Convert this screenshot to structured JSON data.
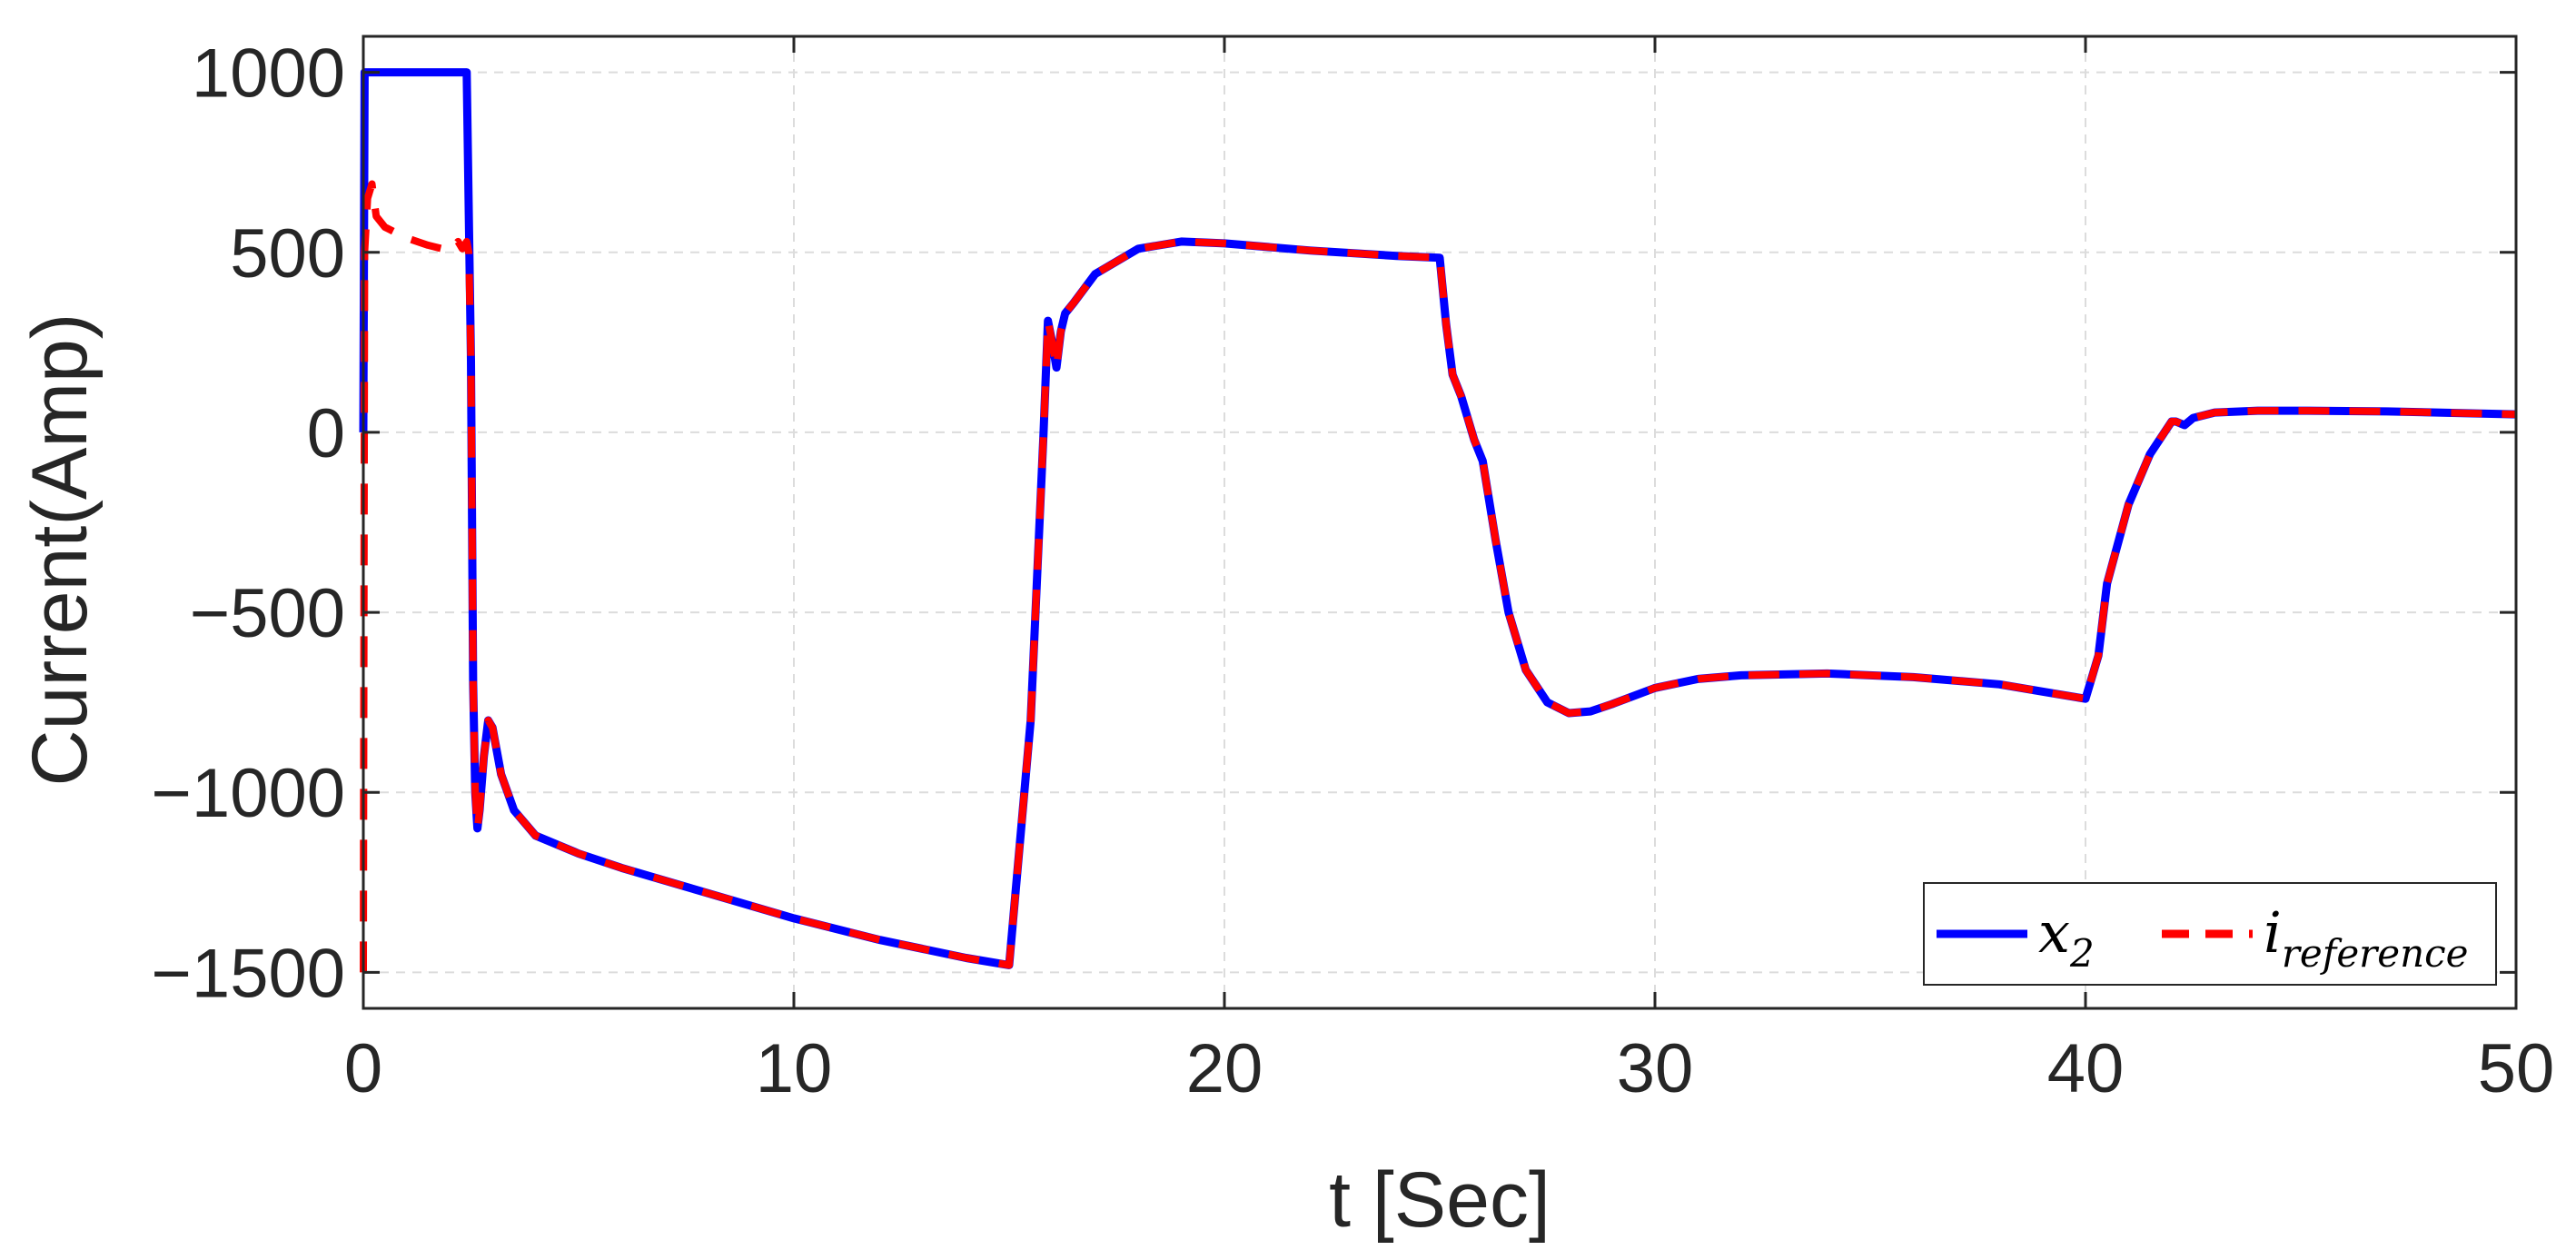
{
  "chart_data": {
    "type": "line",
    "xlabel": "t [Sec]",
    "ylabel": "Current(Amp)",
    "xlim": [
      0,
      50
    ],
    "ylim": [
      -1600,
      1100
    ],
    "x_ticks": [
      0,
      10,
      20,
      30,
      40,
      50
    ],
    "x_tick_labels": [
      "0",
      "10",
      "20",
      "30",
      "40",
      "50"
    ],
    "y_ticks": [
      1000,
      500,
      0,
      -500,
      -1000,
      -1500
    ],
    "y_tick_labels": [
      "1000",
      "500",
      "0",
      "−500",
      "−1000",
      "−1500"
    ],
    "grid": true,
    "legend_position": "bottom-right",
    "series": [
      {
        "name_base": "x",
        "name_sub": "2",
        "color": "#0000ff",
        "style": "solid",
        "x": [
          0,
          0.03,
          0.3,
          1.0,
          2.0,
          2.4,
          2.5,
          2.55,
          2.6,
          2.65,
          2.7,
          2.8,
          2.9,
          3.0,
          3.2,
          3.5,
          4,
          5,
          6,
          8,
          10,
          12,
          14,
          15,
          15.5,
          15.8,
          15.9,
          16.0,
          16.1,
          16.2,
          16.3,
          16.5,
          17,
          18,
          19,
          20,
          22,
          24,
          25,
          25.15,
          25.3,
          25.5,
          25.8,
          26,
          26.3,
          26.6,
          27,
          27.5,
          28,
          28.5,
          29,
          30,
          31,
          32,
          34,
          36,
          38,
          39,
          40,
          40.3,
          40.5,
          41,
          41.5,
          42,
          42.1,
          42.3,
          42.5,
          43,
          44,
          45,
          47,
          50
        ],
        "y": [
          0,
          1000,
          1000,
          1000,
          1000,
          1000,
          200,
          -700,
          -1000,
          -1100,
          -1050,
          -900,
          -800,
          -820,
          -950,
          -1050,
          -1120,
          -1170,
          -1210,
          -1280,
          -1350,
          -1410,
          -1460,
          -1480,
          -800,
          0,
          310,
          250,
          180,
          280,
          330,
          360,
          440,
          510,
          530,
          525,
          505,
          490,
          485,
          300,
          160,
          100,
          -20,
          -80,
          -300,
          -500,
          -660,
          -750,
          -780,
          -775,
          -755,
          -710,
          -685,
          -675,
          -670,
          -680,
          -700,
          -720,
          -740,
          -620,
          -420,
          -200,
          -60,
          30,
          30,
          20,
          40,
          55,
          60,
          60,
          58,
          50
        ]
      },
      {
        "name_base": "i",
        "name_sub": "reference",
        "color": "#ff0000",
        "style": "dashed",
        "x": [
          0,
          0.03,
          0.1,
          0.2,
          0.3,
          0.5,
          1.0,
          1.5,
          2.0,
          2.2,
          2.3,
          2.4,
          2.45,
          2.5,
          2.55,
          2.6,
          2.65,
          2.7,
          2.8,
          2.9,
          3.0,
          3.2,
          3.5,
          4,
          5,
          6,
          8,
          10,
          12,
          14,
          15,
          15.5,
          15.8,
          15.9,
          16.0,
          16.1,
          16.2,
          16.3,
          16.5,
          17,
          18,
          19,
          20,
          22,
          24,
          25,
          25.15,
          25.3,
          25.5,
          25.8,
          26,
          26.3,
          26.6,
          27,
          27.5,
          28,
          28.5,
          29,
          30,
          31,
          32,
          34,
          36,
          38,
          39,
          40,
          40.3,
          40.5,
          41,
          41.5,
          42,
          42.1,
          42.3,
          42.5,
          43,
          44,
          45,
          47,
          50
        ],
        "y": [
          -1500,
          500,
          650,
          690,
          600,
          570,
          540,
          520,
          505,
          530,
          510,
          530,
          500,
          200,
          -700,
          -1000,
          -1100,
          -1050,
          -900,
          -800,
          -820,
          -950,
          -1050,
          -1120,
          -1170,
          -1210,
          -1280,
          -1350,
          -1410,
          -1460,
          -1480,
          -800,
          0,
          310,
          250,
          180,
          280,
          330,
          360,
          440,
          510,
          530,
          525,
          505,
          490,
          485,
          300,
          160,
          100,
          -20,
          -80,
          -300,
          -500,
          -660,
          -750,
          -780,
          -775,
          -755,
          -710,
          -685,
          -675,
          -670,
          -680,
          -700,
          -720,
          -740,
          -620,
          -420,
          -200,
          -60,
          30,
          30,
          20,
          40,
          55,
          60,
          60,
          58,
          50
        ]
      }
    ]
  }
}
